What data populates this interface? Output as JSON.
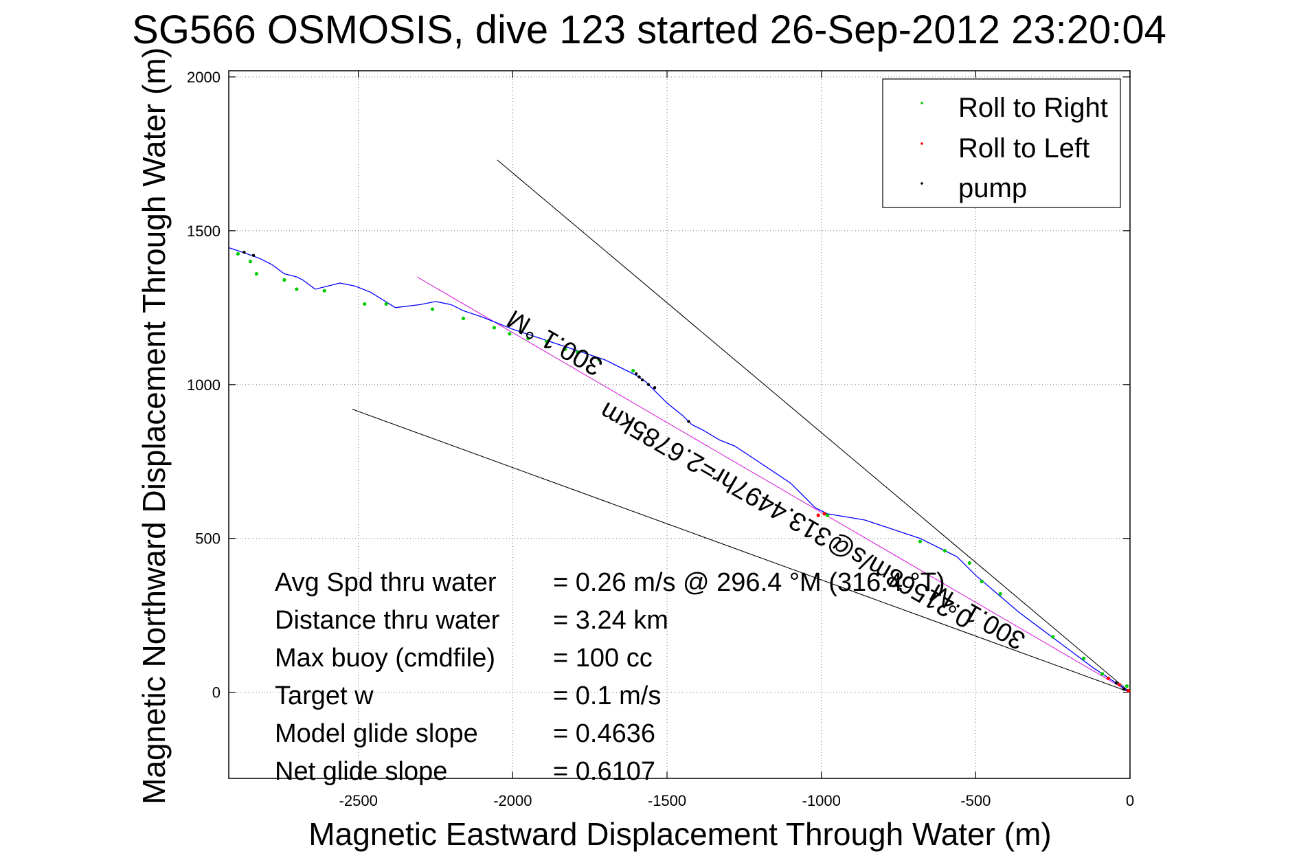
{
  "chart_data": {
    "type": "scatter",
    "title": "SG566 OSMOSIS, dive 123 started 26-Sep-2012 23:20:04",
    "xlabel": "Magnetic Eastward Displacement Through Water (m)",
    "ylabel": "Magnetic Northward Displacement Through Water (m)",
    "xlim": [
      -2920,
      0
    ],
    "ylim": [
      -280,
      2020
    ],
    "xticks": [
      -2500,
      -2000,
      -1500,
      -1000,
      -500,
      0
    ],
    "yticks": [
      0,
      500,
      1000,
      1500,
      2000
    ],
    "grid": true,
    "legend_position": "top-right",
    "legend": [
      {
        "label": "Roll to Right",
        "color": "#00cc00"
      },
      {
        "label": "Roll to Left",
        "color": "#ff0000"
      },
      {
        "label": "pump",
        "color": "#000000"
      }
    ],
    "track": {
      "color": "#0000ff",
      "x": [
        0,
        -60,
        -120,
        -200,
        -280,
        -360,
        -430,
        -500,
        -560,
        -620,
        -680,
        -740,
        -800,
        -860,
        -920,
        -980,
        -1020,
        -1060,
        -1100,
        -1160,
        -1220,
        -1280,
        -1330,
        -1380,
        -1420,
        -1450,
        -1500,
        -1540,
        -1570,
        -1600,
        -1640,
        -1700,
        -1760,
        -1820,
        -1880,
        -1940,
        -2000,
        -2050,
        -2100,
        -2160,
        -2200,
        -2250,
        -2300,
        -2380,
        -2420,
        -2460,
        -2510,
        -2560,
        -2600,
        -2640,
        -2680,
        -2700,
        -2740,
        -2780,
        -2820,
        -2860,
        -2890,
        -2920
      ],
      "y": [
        0,
        40,
        80,
        140,
        200,
        260,
        320,
        380,
        440,
        470,
        500,
        520,
        540,
        560,
        570,
        580,
        600,
        640,
        680,
        720,
        760,
        800,
        820,
        850,
        870,
        900,
        940,
        980,
        1010,
        1030,
        1050,
        1080,
        1100,
        1120,
        1140,
        1160,
        1180,
        1200,
        1220,
        1240,
        1260,
        1270,
        1260,
        1250,
        1275,
        1300,
        1320,
        1330,
        1320,
        1310,
        1340,
        1350,
        1360,
        1390,
        1410,
        1425,
        1435,
        1445
      ]
    },
    "roll_to_right": {
      "x": [
        -10,
        -90,
        -150,
        -250,
        -420,
        -480,
        -520,
        -600,
        -680,
        -980,
        -1610,
        -1720,
        -1790,
        -1830,
        -1890,
        -1950,
        -2010,
        -2060,
        -2160,
        -2260,
        -2410,
        -2480,
        -2610,
        -2700,
        -2740,
        -2830,
        -2850,
        -2890
      ],
      "y": [
        20,
        60,
        110,
        180,
        320,
        360,
        420,
        460,
        490,
        575,
        1045,
        1080,
        1105,
        1115,
        1140,
        1150,
        1165,
        1185,
        1215,
        1245,
        1262,
        1262,
        1305,
        1310,
        1340,
        1360,
        1400,
        1425
      ]
    },
    "roll_to_left": {
      "x": [
        -5,
        -35,
        -70,
        -990,
        -1010
      ],
      "y": [
        5,
        25,
        45,
        580,
        575
      ]
    },
    "pump": {
      "x": [
        -20,
        -45,
        -1350,
        -1430,
        -1540,
        -1560,
        -1580,
        -1590,
        -1600,
        -2840,
        -2870
      ],
      "y": [
        10,
        30,
        720,
        880,
        990,
        1000,
        1015,
        1025,
        1035,
        1420,
        1430
      ]
    },
    "reference_lines": [
      {
        "color": "#000000",
        "x": [
          0,
          -2050
        ],
        "y": [
          0,
          1730
        ]
      },
      {
        "color": "#000000",
        "x": [
          0,
          -2520
        ],
        "y": [
          0,
          920
        ]
      },
      {
        "color": "#ff00ff",
        "x": [
          0,
          -2310
        ],
        "y": [
          0,
          1350
        ]
      },
      {
        "color": "#808080",
        "x": [
          0,
          -2310
        ],
        "y": [
          0,
          1350
        ]
      }
    ],
    "annotations": [
      {
        "text": "300.1 °M",
        "x": -1850,
        "y": 1160,
        "rotate": 210
      },
      {
        "text": "0.21568m/s@313.4497hr=2.6785km",
        "x": -1100,
        "y": 600,
        "rotate": 210
      },
      {
        "text": "300.1 °M",
        "x": -480,
        "y": 270,
        "rotate": 210
      }
    ],
    "stats": [
      {
        "label": "Avg Spd thru water",
        "value": "=  0.26 m/s @ 296.4  °M (316.4 °T)"
      },
      {
        "label": "Distance thru water",
        "value": "=  3.24 km"
      },
      {
        "label": "Max buoy (cmdfile)",
        "value": "= 100 cc"
      },
      {
        "label": "Target w",
        "value": "= 0.1 m/s"
      },
      {
        "label": "Model glide slope",
        "value": "= 0.4636"
      },
      {
        "label": "Net glide slope",
        "value": "= 0.6107"
      }
    ]
  }
}
